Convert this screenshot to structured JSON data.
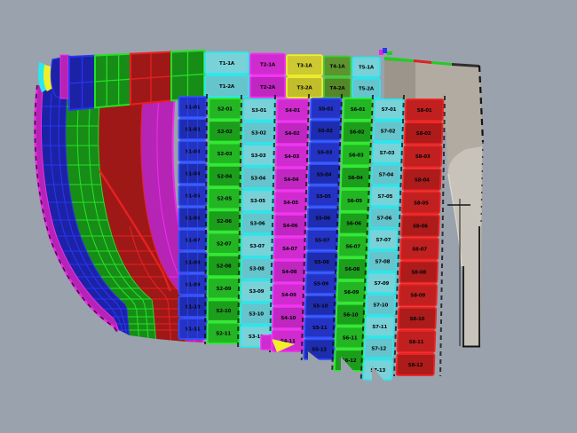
{
  "app": {
    "view_name": "shell-plate-3d-view"
  },
  "palette": {
    "background": "#9aa2ad",
    "blue": {
      "fill": "#2433c4",
      "fill2": "#1e2cb0",
      "edge": "#2f52ff"
    },
    "green": {
      "fill": "#23b523",
      "fill2": "#1c9e1c",
      "edge": "#2bee2b"
    },
    "cyan": {
      "fill": "#79d2d8",
      "fill2": "#66c4cc",
      "edge": "#29e9ee"
    },
    "magenta": {
      "fill": "#cf2bcf",
      "fill2": "#c026c0",
      "edge": "#f32df3"
    },
    "red": {
      "fill": "#c02020",
      "fill2": "#ad1b1b",
      "edge": "#f02222"
    },
    "yellow": {
      "fill": "#cdc932",
      "fill2": "#c2bd2a",
      "edge": "#efef2a"
    },
    "olive": {
      "fill": "#5d9430",
      "fill2": "#538728",
      "edge": "#3ecc35"
    },
    "left_blue": {
      "fill": "#1b22a6",
      "edge": "#2a35f0"
    },
    "left_green": {
      "fill": "#178c17",
      "edge": "#24e024"
    },
    "left_red": {
      "fill": "#9e1818",
      "edge": "#e82020"
    },
    "left_magenta": {
      "fill": "#b524b5",
      "edge": "#ee2aee"
    },
    "stem": {
      "base": "#b2aba2",
      "dark": "#9b958c",
      "light": "#c8c3ba",
      "outline": "#141414"
    }
  },
  "hull": {
    "top_band": {
      "plates": [
        {
          "color": "cyan",
          "labels": [
            "T1-1A",
            "T1-2A"
          ]
        },
        {
          "color": "magenta",
          "labels": [
            "T2-1A",
            "T2-2A"
          ]
        },
        {
          "color": "yellow",
          "labels": [
            "T3-1A",
            "T3-2A"
          ]
        },
        {
          "color": "olive",
          "labels": [
            "T4-1A",
            "T4-2A"
          ]
        },
        {
          "color": "cyan",
          "labels": [
            "T5-1A",
            "T5-2A"
          ]
        }
      ]
    },
    "columns": [
      {
        "color": "blue",
        "labels": [
          "S1-01",
          "S1-02",
          "S1-03",
          "S1-04",
          "S1-05",
          "S1-06",
          "S1-07",
          "S1-08",
          "S1-09",
          "S1-10",
          "S1-11"
        ]
      },
      {
        "color": "green",
        "labels": [
          "S2-01",
          "S2-02",
          "S2-03",
          "S2-04",
          "S2-05",
          "S2-06",
          "S2-07",
          "S2-08",
          "S2-09",
          "S2-10",
          "S2-11"
        ]
      },
      {
        "color": "cyan",
        "labels": [
          "S3-01",
          "S3-02",
          "S3-03",
          "S3-04",
          "S3-05",
          "S3-06",
          "S3-07",
          "S3-08",
          "S3-09",
          "S3-10",
          "S3-11"
        ]
      },
      {
        "color": "magenta",
        "labels": [
          "S4-01",
          "S4-02",
          "S4-03",
          "S4-04",
          "S4-05",
          "S4-06",
          "S4-07",
          "S4-08",
          "S4-09",
          "S4-10",
          "S4-11"
        ]
      },
      {
        "color": "blue",
        "labels": [
          "S5-01",
          "S5-02",
          "S5-03",
          "S5-04",
          "S5-05",
          "S5-06",
          "S5-07",
          "S5-08",
          "S5-09",
          "S5-10",
          "S5-11",
          "S5-12"
        ]
      },
      {
        "color": "green",
        "labels": [
          "S6-01",
          "S6-02",
          "S6-03",
          "S6-04",
          "S6-05",
          "S6-06",
          "S6-07",
          "S6-08",
          "S6-09",
          "S6-10",
          "S6-11",
          "S6-12"
        ]
      },
      {
        "color": "cyan",
        "labels": [
          "S7-01",
          "S7-02",
          "S7-03",
          "S7-04",
          "S7-05",
          "S7-06",
          "S7-07",
          "S7-08",
          "S7-09",
          "S7-10",
          "S7-11",
          "S7-12",
          "S7-13"
        ]
      },
      {
        "color": "red",
        "labels": [
          "S8-01",
          "S8-02",
          "S8-03",
          "S8-04",
          "S8-05",
          "S8-06",
          "S8-07",
          "S8-08",
          "S8-09",
          "S8-10",
          "S8-11",
          "S8-12"
        ]
      }
    ]
  }
}
